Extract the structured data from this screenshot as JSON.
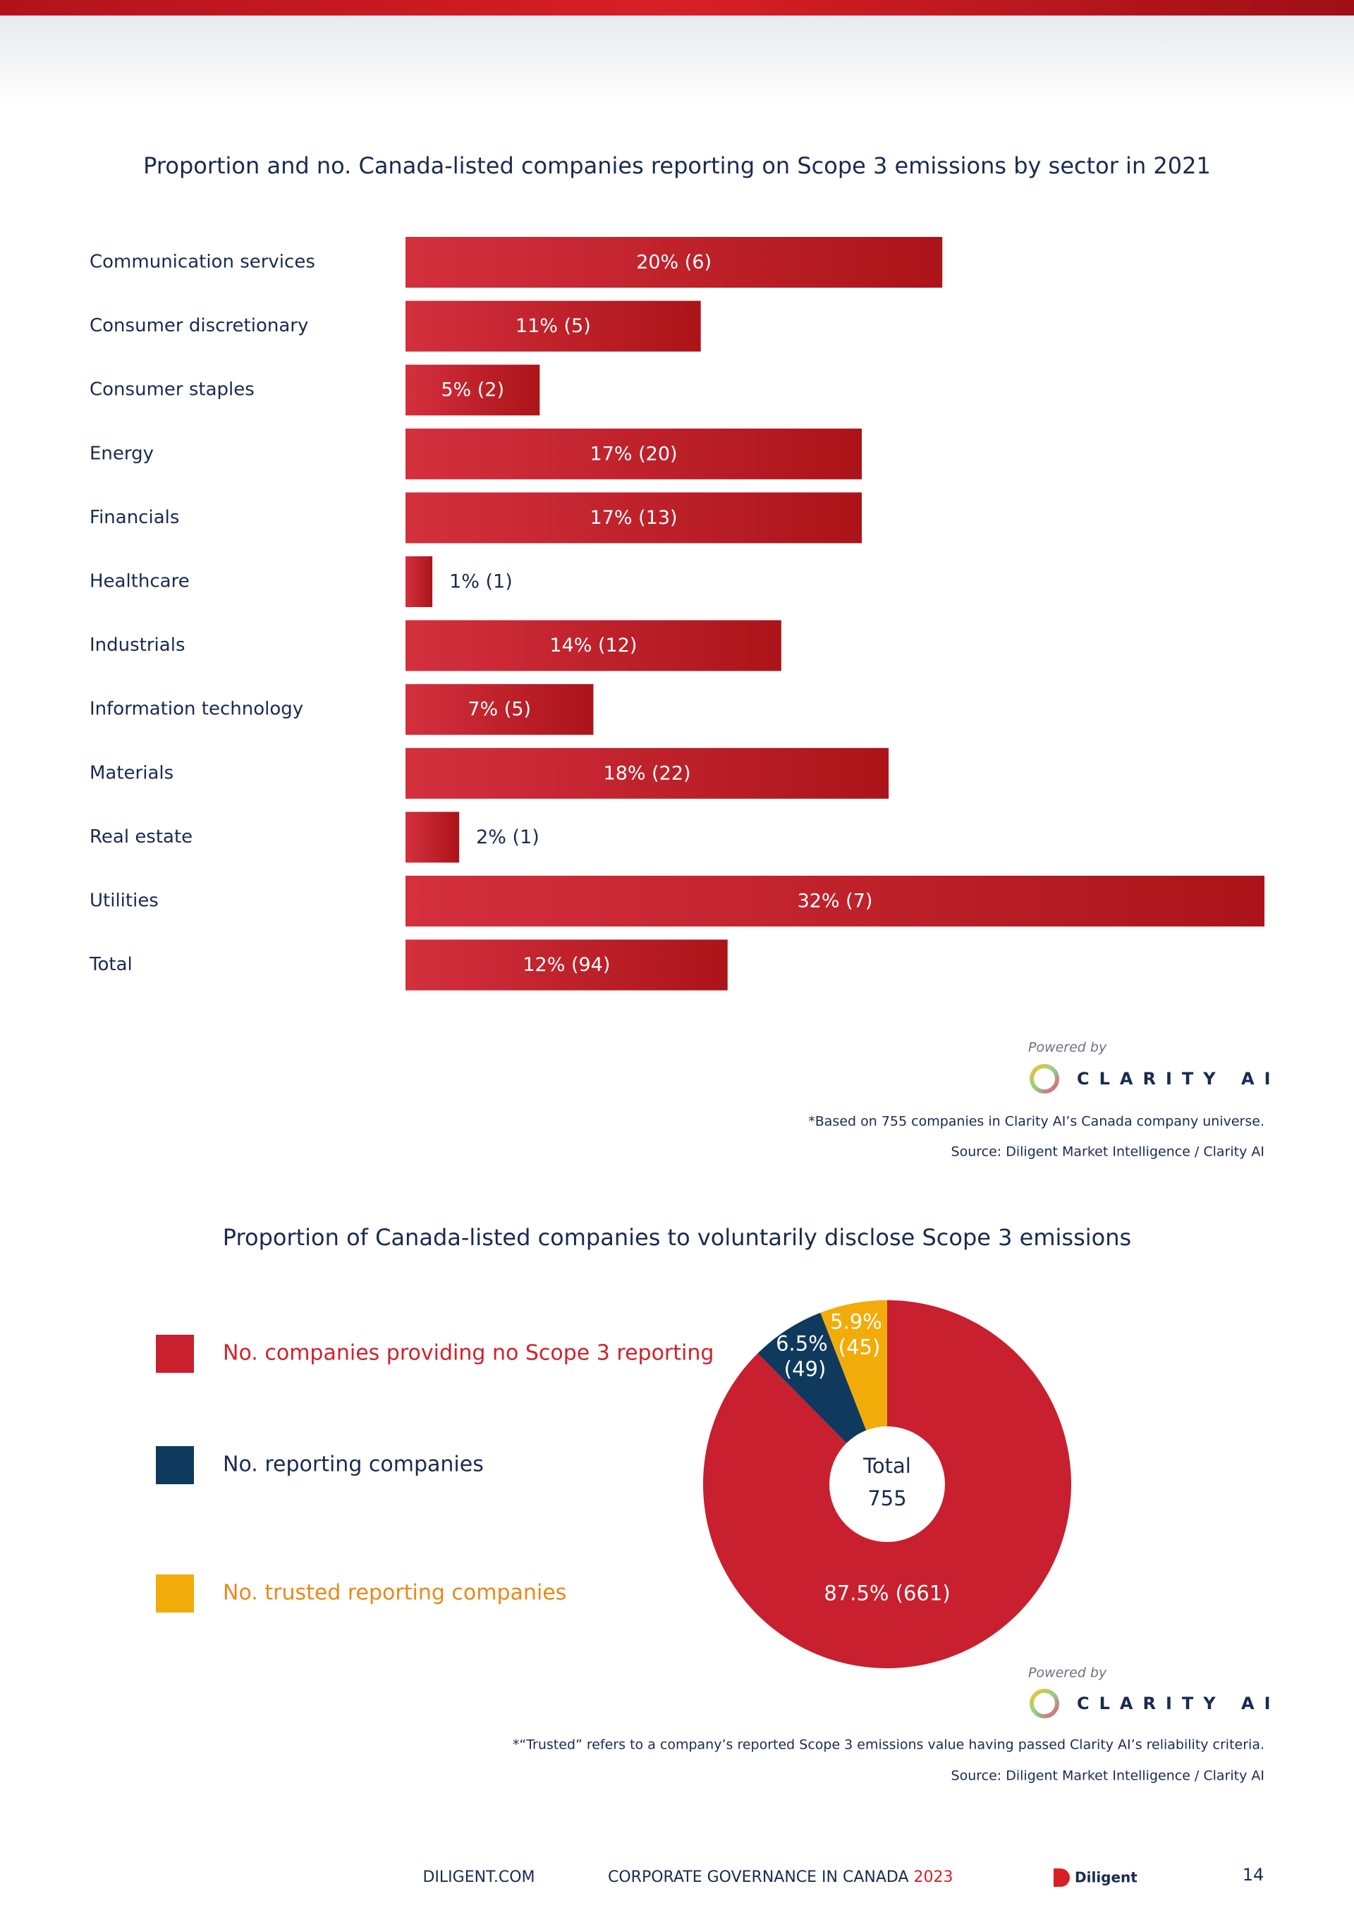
{
  "chart_data": [
    {
      "type": "bar",
      "title": "Proportion and no. Canada-listed companies reporting on Scope 3 emissions by sector in 2021",
      "categories": [
        "Communication services",
        "Consumer discretionary",
        "Consumer staples",
        "Energy",
        "Financials",
        "Healthcare",
        "Industrials",
        "Information technology",
        "Materials",
        "Real estate",
        "Utilities",
        "Total"
      ],
      "values": [
        20,
        11,
        5,
        17,
        17,
        1,
        14,
        7,
        18,
        2,
        32,
        12
      ],
      "value_labels": [
        "20% (6)",
        "11% (5)",
        "5% (2)",
        "17% (20)",
        "17% (13)",
        "1% (1)",
        "14% (12)",
        "7% (5)",
        "18% (22)",
        "2% (1)",
        "32% (7)",
        "12% (94)"
      ],
      "color": "#d4303e",
      "xlim": [
        0,
        32
      ]
    },
    {
      "type": "pie",
      "title": "Proportion of Canada-listed companies to voluntarily disclose Scope 3 emissions",
      "categories": [
        "No. companies providing no Scope 3 reporting",
        "No. reporting companies",
        "No. trusted reporting companies"
      ],
      "values": [
        87.5,
        6.5,
        5.9
      ],
      "value_labels": [
        "87.5% (661)",
        "6.5% (49)",
        "5.9% (45)"
      ],
      "colors": [
        "#c8202e",
        "#0f3a5e",
        "#f2ac0a"
      ],
      "center_label": "Total",
      "center_value": 755
    }
  ],
  "notes": {
    "powered_by": "Powered by",
    "brand": "CLARITY AI",
    "bar_note": "*Based on 755 companies in Clarity AI’s Canada company universe.",
    "bar_source": "Source: Diligent Market Intelligence / Clarity AI",
    "pie_note": "*“Trusted” refers to a company’s reported Scope 3 emissions value having passed Clarity AI’s reliability criteria.",
    "pie_source": "Source: Diligent Market Intelligence / Clarity AI"
  },
  "footer": {
    "site": "DILIGENT.COM",
    "publication": "CORPORATE GOVERNANCE IN CANADA",
    "year": "2023",
    "logo": "Diligent",
    "page": "14"
  }
}
